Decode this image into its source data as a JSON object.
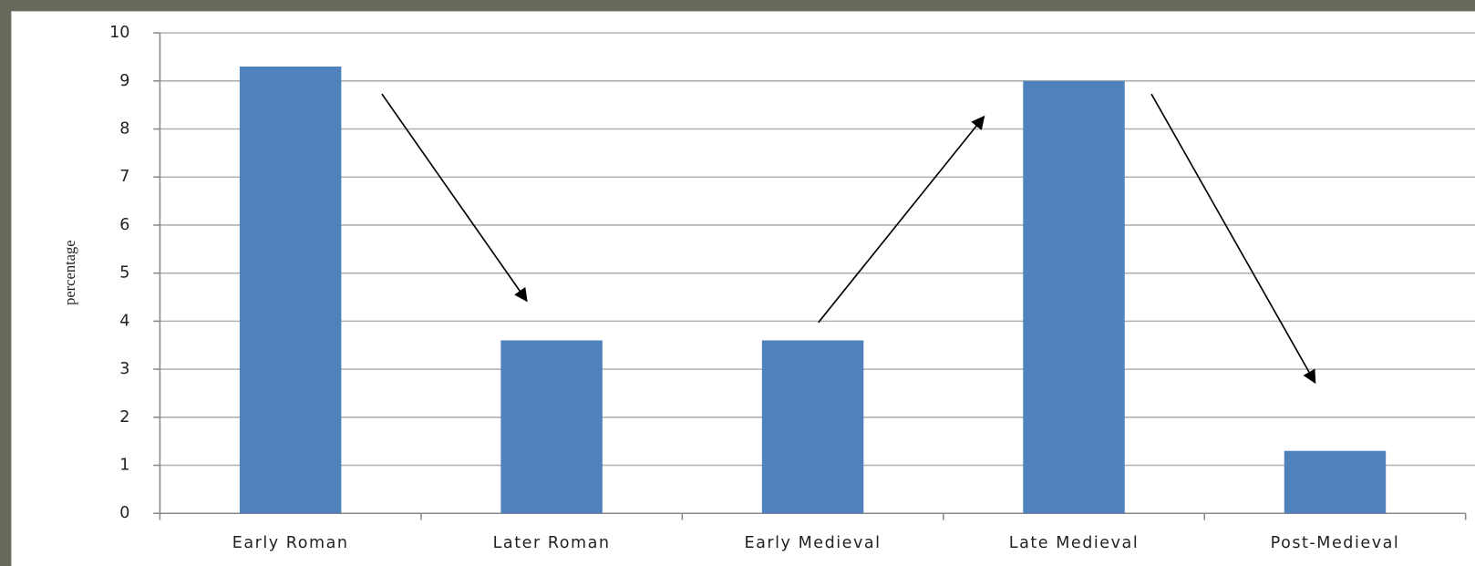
{
  "chart_data": {
    "type": "bar",
    "y_label": "percentage",
    "categories": [
      "Early Roman",
      "Later Roman",
      "Early Medieval",
      "Late Medieval",
      "Post-Medieval"
    ],
    "values": [
      9.3,
      3.6,
      3.6,
      9.0,
      1.3
    ],
    "color": "#4f81bd",
    "ylim": [
      0,
      10
    ],
    "yticks": [
      0,
      1,
      2,
      3,
      4,
      5,
      6,
      7,
      8,
      9,
      10
    ],
    "grid": true
  }
}
